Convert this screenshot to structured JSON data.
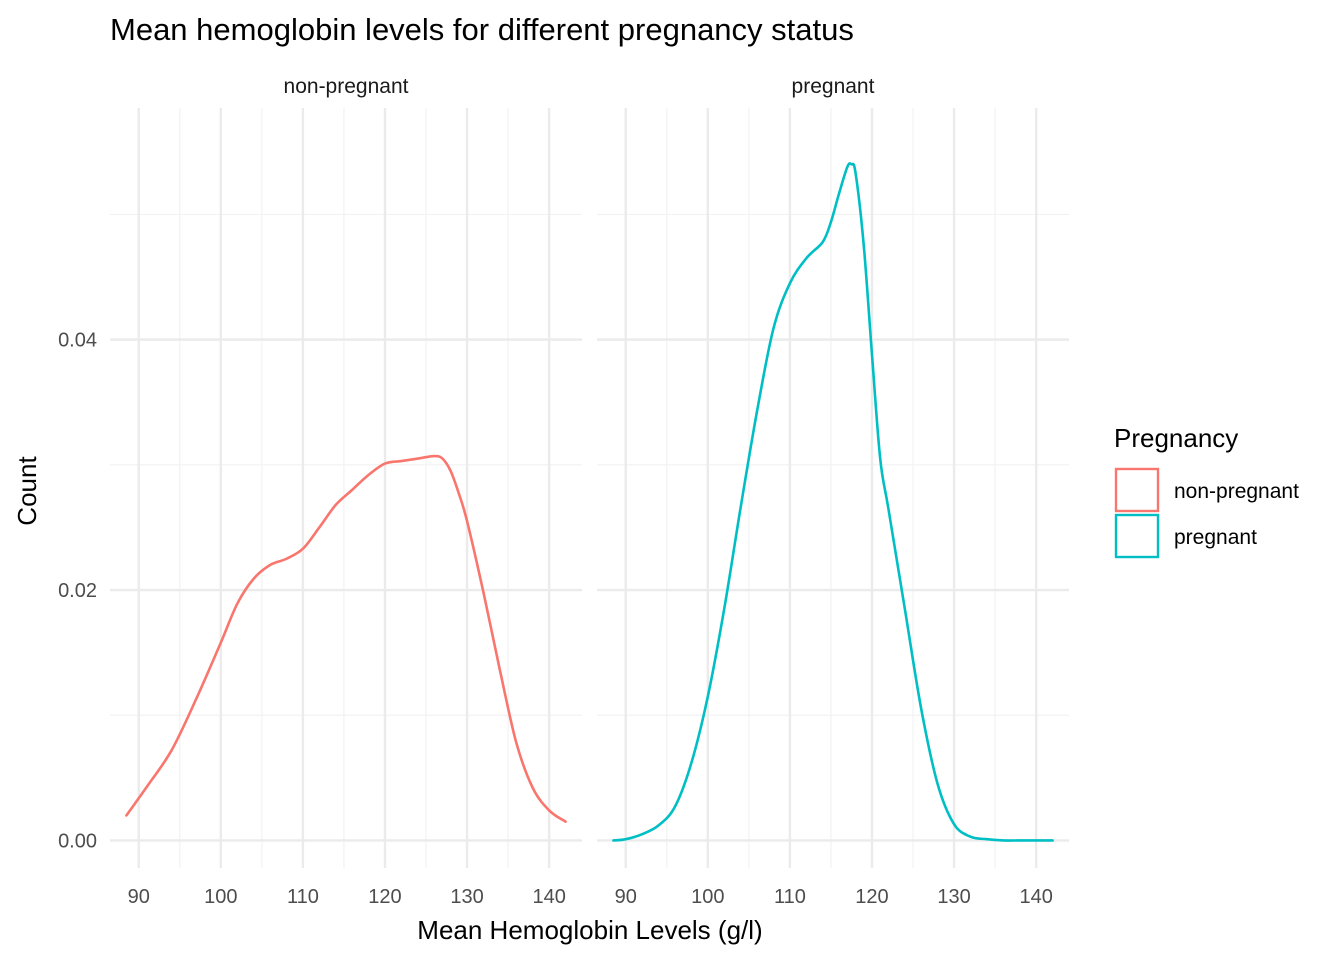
{
  "chart_data": {
    "type": "line",
    "subtype": "density",
    "title": "Mean hemoglobin levels for different pregnancy status",
    "xlabel": "Mean Hemoglobin Levels (g/l)",
    "ylabel": "Count",
    "xlim": [
      86.5,
      144
    ],
    "ylim": [
      -0.0022,
      0.0585
    ],
    "x_ticks": [
      90,
      100,
      110,
      120,
      130,
      140
    ],
    "x_tick_labels": [
      "90",
      "100",
      "110",
      "120",
      "130",
      "140"
    ],
    "y_ticks": [
      0,
      0.02,
      0.04
    ],
    "y_tick_labels": [
      "0.00",
      "0.02",
      "0.04"
    ],
    "grid": true,
    "legend": {
      "title": "Pregnancy",
      "placement": "right",
      "entries": [
        {
          "label": "non-pregnant",
          "color": "#F8766D"
        },
        {
          "label": "pregnant",
          "color": "#00BFC4"
        }
      ]
    },
    "panels": [
      {
        "label": "non-pregnant",
        "color": "#F8766D",
        "x": [
          88.5,
          91,
          94,
          97,
          100,
          102,
          104,
          106,
          108,
          110,
          112,
          114,
          116,
          118,
          120,
          122,
          124,
          126,
          127,
          128,
          129,
          130,
          132,
          134,
          136,
          138,
          140,
          142
        ],
        "y": [
          0.002,
          0.0043,
          0.0072,
          0.0113,
          0.0158,
          0.0189,
          0.0209,
          0.022,
          0.0225,
          0.0233,
          0.025,
          0.0268,
          0.028,
          0.0292,
          0.0301,
          0.0303,
          0.0305,
          0.0307,
          0.0305,
          0.0295,
          0.0277,
          0.0255,
          0.0198,
          0.0136,
          0.0078,
          0.0042,
          0.0024,
          0.0015
        ]
      },
      {
        "label": "pregnant",
        "color": "#00BFC4",
        "x": [
          88.5,
          90,
          92,
          94,
          96,
          98,
          100,
          102,
          104,
          106,
          108,
          110,
          112,
          114,
          115,
          116,
          117,
          117.5,
          118,
          119,
          120,
          121,
          122,
          124,
          126,
          128,
          130,
          132,
          134,
          136,
          138,
          140,
          142
        ],
        "y": [
          0,
          0.0001,
          0.0005,
          0.0012,
          0.0027,
          0.0062,
          0.0115,
          0.0185,
          0.0266,
          0.0343,
          0.0409,
          0.0445,
          0.0465,
          0.0478,
          0.0494,
          0.0517,
          0.0538,
          0.054,
          0.0533,
          0.0475,
          0.0388,
          0.0305,
          0.0265,
          0.0185,
          0.0105,
          0.0045,
          0.0013,
          0.0003,
          0.0001,
          0,
          0,
          0,
          0
        ]
      }
    ]
  }
}
